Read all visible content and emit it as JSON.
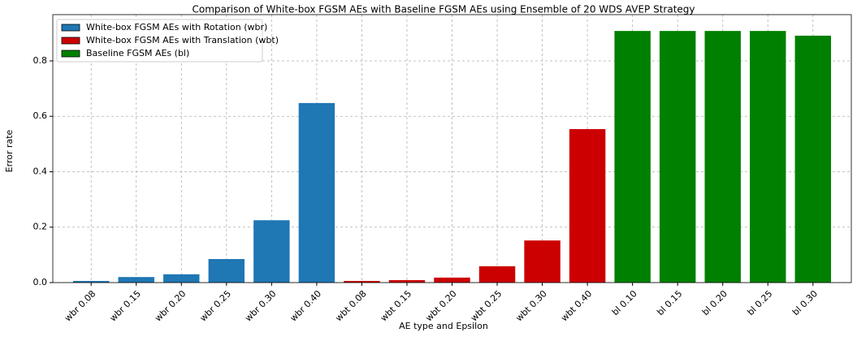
{
  "chart_data": {
    "type": "bar",
    "title": "Comparison of White-box FGSM AEs with Baseline FGSM AEs using Ensemble of 20 WDS AVEP Strategy",
    "x_label": "AE type and Epsilon",
    "y_label": "Error rate",
    "categories": [
      "wbr 0.08",
      "wbr 0.15",
      "wbr 0.20",
      "wbr 0.25",
      "wbr 0.30",
      "wbr 0.40",
      "wbt 0.08",
      "wbt 0.15",
      "wbt 0.20",
      "wbt 0.25",
      "wbt 0.30",
      "wbt 0.40",
      "bl 0.10",
      "bl 0.15",
      "bl 0.20",
      "bl 0.25",
      "bl 0.30"
    ],
    "series": [
      {
        "name": "White-box FGSM AEs with Rotation (wbr)",
        "color": "#1f77b4",
        "values": [
          0.006,
          0.02,
          0.03,
          0.085,
          0.225,
          0.648,
          null,
          null,
          null,
          null,
          null,
          null,
          null,
          null,
          null,
          null,
          null
        ]
      },
      {
        "name": "White-box FGSM AEs with Translation (wbt)",
        "color": "#cc0000",
        "values": [
          null,
          null,
          null,
          null,
          null,
          null,
          0.006,
          0.009,
          0.018,
          0.059,
          0.152,
          0.554,
          null,
          null,
          null,
          null,
          null
        ]
      },
      {
        "name": "Baseline FGSM AEs (bl)",
        "color": "#008000",
        "values": [
          null,
          null,
          null,
          null,
          null,
          null,
          null,
          null,
          null,
          null,
          null,
          null,
          0.908,
          0.908,
          0.908,
          0.908,
          0.891
        ]
      }
    ],
    "ylim": [
      0,
      0.967
    ],
    "yticks": [
      {
        "value": 0,
        "label": "0.0"
      },
      0.2,
      0.4,
      0.6,
      0.8
    ],
    "grid": true,
    "legend": "upper left"
  }
}
